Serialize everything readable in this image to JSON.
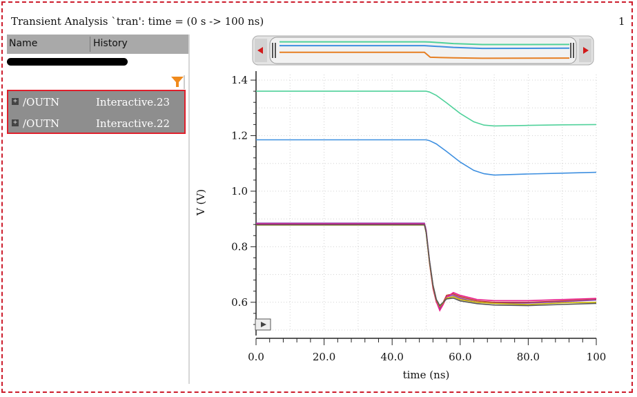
{
  "window": {
    "title": "Transient Analysis `tran': time = (0 s -> 100 ns)",
    "page_number": "1"
  },
  "browser": {
    "columns": [
      "Name",
      "History"
    ],
    "items": [
      {
        "signal": "/OUTN",
        "history": "Interactive.23"
      },
      {
        "signal": "/OUTN",
        "history": "Interactive.22"
      }
    ]
  },
  "colors": {
    "frame": "#cc1b2b",
    "selection_border": "#e01f2b",
    "filter_icon": "#f08a1c",
    "series": [
      "#4fd19a",
      "#3d8fe0",
      "#c0392b",
      "#8e44ad",
      "#e91e8c",
      "#c9b400",
      "#555555",
      "#e67e22"
    ]
  },
  "icons": {
    "filter": "funnel-icon",
    "expand": "plus-box-icon",
    "scroll_left": "arrow-left-icon",
    "scroll_right": "arrow-right-icon",
    "play": "play-icon"
  },
  "chart_data": {
    "type": "line",
    "title": "",
    "xlabel": "time (ns)",
    "ylabel": "V (V)",
    "xlim": [
      0,
      100
    ],
    "ylim": [
      0.5,
      1.42
    ],
    "xticks": [
      0,
      20,
      40,
      60,
      80,
      100
    ],
    "xtick_labels": [
      "0.0",
      "20.0",
      "40.0",
      "60.0",
      "80.0",
      "100"
    ],
    "yticks": [
      0.6,
      0.8,
      1.0,
      1.2,
      1.4
    ],
    "ytick_labels": [
      "0.6",
      "0.8",
      "1.0",
      "1.2",
      "1.4"
    ],
    "grid": true,
    "series": [
      {
        "x": [
          0,
          50,
          51,
          53,
          56,
          60,
          64,
          67,
          70,
          80,
          90,
          100
        ],
        "y": [
          1.36,
          1.36,
          1.357,
          1.345,
          1.318,
          1.28,
          1.25,
          1.238,
          1.235,
          1.237,
          1.239,
          1.24
        ]
      },
      {
        "x": [
          0,
          50,
          51,
          53,
          56,
          60,
          64,
          67,
          70,
          80,
          90,
          100
        ],
        "y": [
          1.185,
          1.185,
          1.182,
          1.17,
          1.143,
          1.105,
          1.075,
          1.063,
          1.058,
          1.062,
          1.065,
          1.068
        ]
      },
      {
        "x": [
          0,
          49.5,
          50,
          51,
          52,
          53,
          54,
          55,
          56,
          58,
          60,
          65,
          70,
          80,
          90,
          100
        ],
        "y": [
          0.88,
          0.88,
          0.85,
          0.74,
          0.65,
          0.6,
          0.58,
          0.6,
          0.625,
          0.63,
          0.62,
          0.605,
          0.6,
          0.6,
          0.605,
          0.61
        ]
      },
      {
        "x": [
          0,
          49.5,
          50,
          51,
          52,
          53,
          54,
          55,
          56,
          58,
          60,
          65,
          70,
          80,
          90,
          100
        ],
        "y": [
          0.885,
          0.885,
          0.86,
          0.75,
          0.66,
          0.605,
          0.575,
          0.595,
          0.62,
          0.625,
          0.615,
          0.6,
          0.597,
          0.597,
          0.602,
          0.608
        ]
      },
      {
        "x": [
          0,
          49.5,
          50,
          51,
          52,
          53,
          54,
          55,
          56,
          58,
          60,
          65,
          70,
          80,
          90,
          100
        ],
        "y": [
          0.882,
          0.882,
          0.855,
          0.745,
          0.655,
          0.602,
          0.57,
          0.592,
          0.618,
          0.635,
          0.625,
          0.61,
          0.606,
          0.606,
          0.61,
          0.614
        ]
      },
      {
        "x": [
          0,
          49.5,
          50,
          51,
          52,
          53,
          54,
          55,
          56,
          58,
          60,
          65,
          70,
          80,
          90,
          100
        ],
        "y": [
          0.878,
          0.878,
          0.85,
          0.745,
          0.66,
          0.608,
          0.585,
          0.598,
          0.615,
          0.62,
          0.61,
          0.6,
          0.596,
          0.592,
          0.598,
          0.6
        ]
      },
      {
        "x": [
          0,
          49.5,
          50,
          51,
          52,
          53,
          54,
          55,
          56,
          58,
          60,
          65,
          70,
          80,
          90,
          100
        ],
        "y": [
          0.879,
          0.879,
          0.852,
          0.748,
          0.662,
          0.61,
          0.588,
          0.6,
          0.612,
          0.615,
          0.605,
          0.595,
          0.59,
          0.588,
          0.592,
          0.596
        ]
      }
    ]
  },
  "overview_data": {
    "x": [
      0,
      50,
      52,
      60,
      70,
      100
    ],
    "series": [
      {
        "y": [
          1.36,
          1.36,
          1.35,
          1.28,
          1.235,
          1.24
        ]
      },
      {
        "y": [
          1.185,
          1.185,
          1.17,
          1.105,
          1.058,
          1.068
        ]
      },
      {
        "y": [
          0.88,
          0.88,
          0.65,
          0.62,
          0.6,
          0.61
        ]
      }
    ]
  }
}
